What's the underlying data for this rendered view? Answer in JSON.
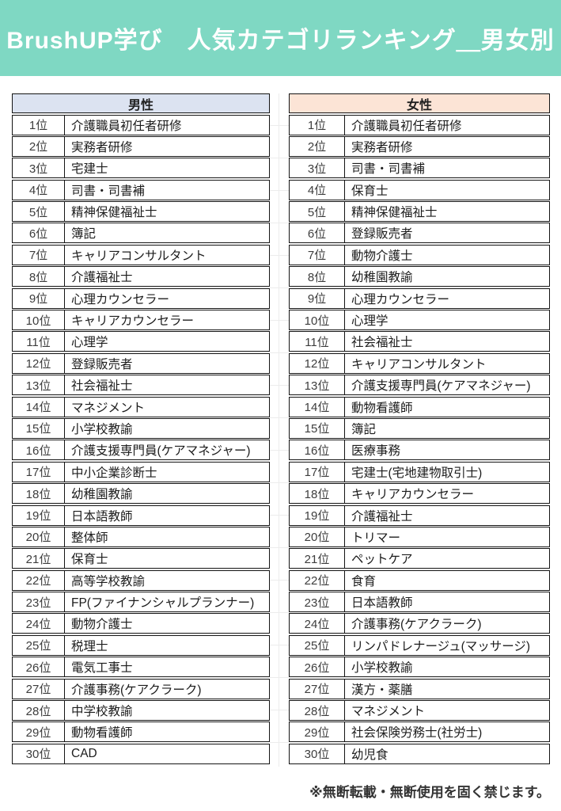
{
  "banner": {
    "title": "BrushUP学び　人気カテゴリランキング＿男女別",
    "bg_color": "#7fd8c3",
    "text_color": "#ffffff"
  },
  "tables": {
    "male": {
      "title": "男性",
      "header_bg": "#dce3f1",
      "items": [
        {
          "rank": "1位",
          "name": "介護職員初任者研修"
        },
        {
          "rank": "2位",
          "name": "実務者研修"
        },
        {
          "rank": "3位",
          "name": "宅建士"
        },
        {
          "rank": "4位",
          "name": "司書・司書補"
        },
        {
          "rank": "5位",
          "name": "精神保健福祉士"
        },
        {
          "rank": "6位",
          "name": "簿記"
        },
        {
          "rank": "7位",
          "name": "キャリアコンサルタント"
        },
        {
          "rank": "8位",
          "name": "介護福祉士"
        },
        {
          "rank": "9位",
          "name": "心理カウンセラー"
        },
        {
          "rank": "10位",
          "name": "キャリアカウンセラー"
        },
        {
          "rank": "11位",
          "name": "心理学"
        },
        {
          "rank": "12位",
          "name": "登録販売者"
        },
        {
          "rank": "13位",
          "name": "社会福祉士"
        },
        {
          "rank": "14位",
          "name": "マネジメント"
        },
        {
          "rank": "15位",
          "name": "小学校教諭"
        },
        {
          "rank": "16位",
          "name": "介護支援専門員(ケアマネジャー)"
        },
        {
          "rank": "17位",
          "name": "中小企業診断士"
        },
        {
          "rank": "18位",
          "name": "幼稚園教諭"
        },
        {
          "rank": "19位",
          "name": "日本語教師"
        },
        {
          "rank": "20位",
          "name": "整体師"
        },
        {
          "rank": "21位",
          "name": "保育士"
        },
        {
          "rank": "22位",
          "name": "高等学校教諭"
        },
        {
          "rank": "23位",
          "name": "FP(ファイナンシャルプランナー)"
        },
        {
          "rank": "24位",
          "name": "動物介護士"
        },
        {
          "rank": "25位",
          "name": "税理士"
        },
        {
          "rank": "26位",
          "name": "電気工事士"
        },
        {
          "rank": "27位",
          "name": "介護事務(ケアクラーク)"
        },
        {
          "rank": "28位",
          "name": "中学校教諭"
        },
        {
          "rank": "29位",
          "name": "動物看護師"
        },
        {
          "rank": "30位",
          "name": "CAD"
        }
      ]
    },
    "female": {
      "title": "女性",
      "header_bg": "#fce4d6",
      "items": [
        {
          "rank": "1位",
          "name": "介護職員初任者研修"
        },
        {
          "rank": "2位",
          "name": "実務者研修"
        },
        {
          "rank": "3位",
          "name": "司書・司書補"
        },
        {
          "rank": "4位",
          "name": "保育士"
        },
        {
          "rank": "5位",
          "name": "精神保健福祉士"
        },
        {
          "rank": "6位",
          "name": "登録販売者"
        },
        {
          "rank": "7位",
          "name": "動物介護士"
        },
        {
          "rank": "8位",
          "name": "幼稚園教諭"
        },
        {
          "rank": "9位",
          "name": "心理カウンセラー"
        },
        {
          "rank": "10位",
          "name": "心理学"
        },
        {
          "rank": "11位",
          "name": "社会福祉士"
        },
        {
          "rank": "12位",
          "name": "キャリアコンサルタント"
        },
        {
          "rank": "13位",
          "name": "介護支援専門員(ケアマネジャー)"
        },
        {
          "rank": "14位",
          "name": "動物看護師"
        },
        {
          "rank": "15位",
          "name": "簿記"
        },
        {
          "rank": "16位",
          "name": "医療事務"
        },
        {
          "rank": "17位",
          "name": "宅建士(宅地建物取引士)"
        },
        {
          "rank": "18位",
          "name": "キャリアカウンセラー"
        },
        {
          "rank": "19位",
          "name": "介護福祉士"
        },
        {
          "rank": "20位",
          "name": "トリマー"
        },
        {
          "rank": "21位",
          "name": "ペットケア"
        },
        {
          "rank": "22位",
          "name": "食育"
        },
        {
          "rank": "23位",
          "name": "日本語教師"
        },
        {
          "rank": "24位",
          "name": "介護事務(ケアクラーク)"
        },
        {
          "rank": "25位",
          "name": "リンパドレナージュ(マッサージ)"
        },
        {
          "rank": "26位",
          "name": "小学校教諭"
        },
        {
          "rank": "27位",
          "name": "漢方・薬膳"
        },
        {
          "rank": "28位",
          "name": "マネジメント"
        },
        {
          "rank": "29位",
          "name": "社会保険労務士(社労士)"
        },
        {
          "rank": "30位",
          "name": "幼児食"
        }
      ]
    }
  },
  "footer": {
    "note": "※無断転載・無断使用を固く禁じます。"
  }
}
